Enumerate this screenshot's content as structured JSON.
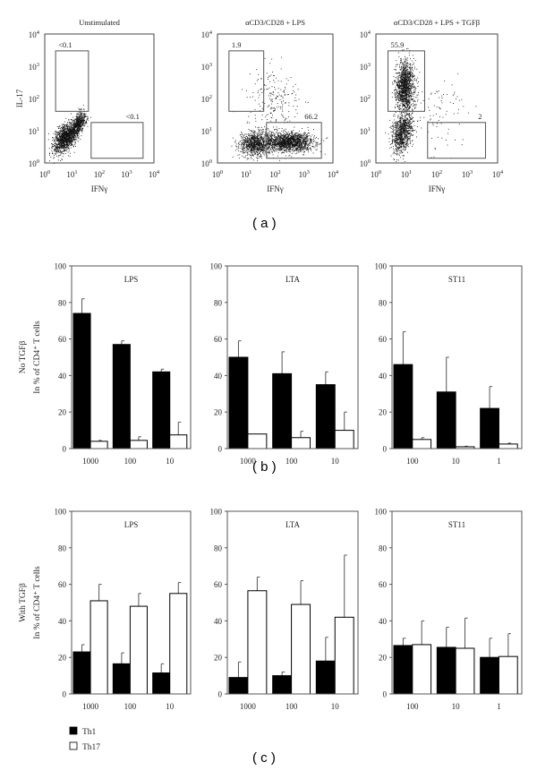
{
  "panel_labels": {
    "a": "( a )",
    "b": "( b )",
    "c": "( c )"
  },
  "chart_data": [
    {
      "type": "scatter",
      "panel": "a",
      "scale": "log",
      "xlabel": "IFNγ",
      "ylabel": "IL-17",
      "xlim": [
        1,
        10000
      ],
      "ylim": [
        1,
        10000
      ],
      "x_ticks": [
        "10^0",
        "10^1",
        "10^2",
        "10^3",
        "10^4"
      ],
      "y_ticks": [
        "10^0",
        "10^1",
        "10^2",
        "10^3",
        "10^4"
      ],
      "plots": [
        {
          "title": "Unstimulated",
          "gates": [
            {
              "label": "<0.1",
              "x": [
                2.5,
                40
              ],
              "y": [
                40,
                3000
              ]
            },
            {
              "label": "<0.1",
              "x": [
                50,
                4000
              ],
              "y": [
                1.4,
                18
              ]
            }
          ],
          "populations_log10": [
            {
              "cx": 0.75,
              "cy": 0.8,
              "sx": 0.22,
              "sy": 0.2,
              "n": 1300,
              "slope": 0.55
            },
            {
              "cx": 1.25,
              "cy": 1.25,
              "sx": 0.12,
              "sy": 0.14,
              "n": 500,
              "slope": 0.6
            }
          ]
        },
        {
          "title": "αCD3/CD28 + LPS",
          "gates": [
            {
              "label": "1.9",
              "x": [
                2.5,
                40
              ],
              "y": [
                40,
                3000
              ]
            },
            {
              "label": "66.2",
              "x": [
                50,
                4000
              ],
              "y": [
                1.4,
                18
              ]
            }
          ],
          "populations_log10": [
            {
              "cx": 1.3,
              "cy": 0.6,
              "sx": 0.28,
              "sy": 0.18,
              "n": 900,
              "slope": 0
            },
            {
              "cx": 2.45,
              "cy": 0.65,
              "sx": 0.42,
              "sy": 0.15,
              "n": 1500,
              "slope": 0
            },
            {
              "cx": 1.9,
              "cy": 1.9,
              "sx": 0.45,
              "sy": 0.55,
              "n": 220,
              "slope": 0
            }
          ]
        },
        {
          "title": "αCD3/CD28 + LPS + TGFβ",
          "gates": [
            {
              "label": "55.9",
              "x": [
                2.5,
                40
              ],
              "y": [
                40,
                3000
              ]
            },
            {
              "label": "2",
              "x": [
                50,
                4000
              ],
              "y": [
                1.4,
                18
              ]
            }
          ],
          "populations_log10": [
            {
              "cx": 0.95,
              "cy": 2.4,
              "sx": 0.15,
              "sy": 0.38,
              "n": 1300,
              "slope": 0
            },
            {
              "cx": 0.85,
              "cy": 0.95,
              "sx": 0.17,
              "sy": 0.3,
              "n": 900,
              "slope": 0.5
            },
            {
              "cx": 2.0,
              "cy": 1.6,
              "sx": 0.5,
              "sy": 0.6,
              "n": 90,
              "slope": 0
            }
          ]
        }
      ]
    },
    {
      "type": "bar",
      "panel": "b",
      "ylabel_line1": "No TGFβ",
      "ylabel_line2": "In % of CD4⁺ T cells",
      "ylim": [
        0,
        100
      ],
      "y_ticks": [
        "0",
        "20",
        "40",
        "60",
        "80",
        "100"
      ],
      "series_names": [
        "Th1",
        "Th17"
      ],
      "colors": {
        "Th1": "#000000",
        "Th17": "#ffffff"
      },
      "plots": [
        {
          "title": "LPS",
          "categories": [
            "1000",
            "100",
            "10"
          ],
          "Th1": [
            74,
            57,
            42
          ],
          "Th1_err": [
            8,
            2,
            1.5
          ],
          "Th17": [
            4,
            4.5,
            7.5
          ],
          "Th17_err": [
            0.5,
            2,
            7
          ]
        },
        {
          "title": "LTA",
          "categories": [
            "1000",
            "100",
            "10"
          ],
          "Th1": [
            50,
            41,
            35
          ],
          "Th1_err": [
            9,
            12,
            7
          ],
          "Th17": [
            8,
            6,
            10
          ],
          "Th17_err": [
            0,
            3.5,
            10
          ]
        },
        {
          "title": "ST11",
          "categories": [
            "100",
            "10",
            "1"
          ],
          "Th1": [
            46,
            31,
            22
          ],
          "Th1_err": [
            18,
            19,
            12
          ],
          "Th17": [
            5,
            1,
            2.5
          ],
          "Th17_err": [
            1,
            0.3,
            0.5
          ]
        }
      ]
    },
    {
      "type": "bar",
      "panel": "c",
      "ylabel_line1": "With TGFβ",
      "ylabel_line2": "In % of CD4⁺ T cells",
      "ylim": [
        0,
        100
      ],
      "y_ticks": [
        "0",
        "20",
        "40",
        "60",
        "80",
        "100"
      ],
      "series_names": [
        "Th1",
        "Th17"
      ],
      "colors": {
        "Th1": "#000000",
        "Th17": "#ffffff"
      },
      "legend": {
        "position": "bottom-left",
        "items": [
          "Th1",
          "Th17"
        ]
      },
      "plots": [
        {
          "title": "LPS",
          "categories": [
            "1000",
            "100",
            "10"
          ],
          "Th1": [
            23,
            16.5,
            11.5
          ],
          "Th1_err": [
            4,
            6,
            5
          ],
          "Th17": [
            51,
            48,
            55
          ],
          "Th17_err": [
            9,
            7,
            6
          ]
        },
        {
          "title": "LTA",
          "categories": [
            "1000",
            "100",
            "10"
          ],
          "Th1": [
            9,
            10,
            18
          ],
          "Th1_err": [
            8.5,
            2,
            13
          ],
          "Th17": [
            56.5,
            49,
            42
          ],
          "Th17_err": [
            7.5,
            13,
            34
          ]
        },
        {
          "title": "ST11",
          "categories": [
            "100",
            "10",
            "1"
          ],
          "Th1": [
            26.5,
            25.5,
            20
          ],
          "Th1_err": [
            4,
            11,
            10.5
          ],
          "Th17": [
            27,
            25,
            20.5
          ],
          "Th17_err": [
            13,
            16.5,
            12.5
          ]
        }
      ]
    }
  ]
}
